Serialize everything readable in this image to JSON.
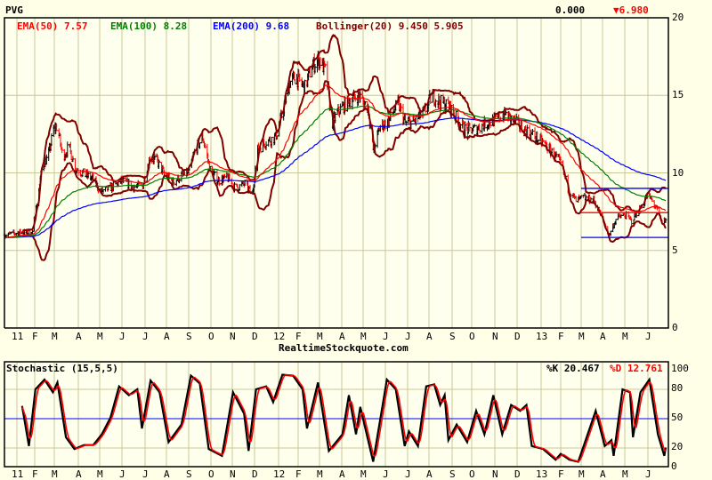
{
  "header": {
    "symbol": "PVG",
    "change": "0.000",
    "last_price": "6.980",
    "down_arrow": "▼"
  },
  "legend": {
    "ema50": "EMA(50) 7.57",
    "ema100": "EMA(100) 8.28",
    "ema200": "EMA(200) 9.68",
    "bollinger": "Bollinger(20) 9.450 5.905"
  },
  "footer": {
    "source": "RealtimeStockquote.com"
  },
  "stochastic_panel": {
    "title": "Stochastic (15,5,5)",
    "k_label": "%K 20.467",
    "d_label": "%D 12.761"
  },
  "colors": {
    "ema50": "#ff0000",
    "ema100": "#008000",
    "ema200": "#0000ff",
    "bollinger": "#800000",
    "up_bar": "#000000",
    "down_bar": "#ff0000",
    "grid": "#c8c896",
    "background": "#ffffe8"
  },
  "chart_data": [
    {
      "type": "line",
      "title": "PVG",
      "ylim": [
        0,
        20
      ],
      "y_ticks": [
        "20",
        "15",
        "10",
        "5",
        "0"
      ],
      "x_tick_labels": [
        "11",
        "F",
        "M",
        "A",
        "M",
        "J",
        "J",
        "A",
        "S",
        "O",
        "N",
        "D",
        "12",
        "F",
        "M",
        "A",
        "M",
        "J",
        "J",
        "A",
        "S",
        "O",
        "N",
        "D",
        "13",
        "F",
        "M",
        "A",
        "M",
        "J"
      ],
      "grid": true,
      "indicators": [
        "EMA(50)",
        "EMA(100)",
        "EMA(200)",
        "Bollinger(20)"
      ],
      "close": [
        [
          "2010-12-15",
          6.0
        ],
        [
          "2011-01-10",
          6.2
        ],
        [
          "2011-01-28",
          6.1
        ],
        [
          "2011-02-04",
          8.0
        ],
        [
          "2011-02-12",
          10.5
        ],
        [
          "2011-02-20",
          11.0
        ],
        [
          "2011-02-28",
          12.8
        ],
        [
          "2011-03-05",
          13.0
        ],
        [
          "2011-03-12",
          11.0
        ],
        [
          "2011-03-20",
          11.7
        ],
        [
          "2011-03-28",
          10.3
        ],
        [
          "2011-04-10",
          9.9
        ],
        [
          "2011-04-22",
          9.6
        ],
        [
          "2011-05-02",
          8.8
        ],
        [
          "2011-05-15",
          9.0
        ],
        [
          "2011-06-01",
          9.5
        ],
        [
          "2011-06-15",
          9.1
        ],
        [
          "2011-06-28",
          9.2
        ],
        [
          "2011-07-08",
          11.0
        ],
        [
          "2011-07-18",
          10.8
        ],
        [
          "2011-07-28",
          10.0
        ],
        [
          "2011-08-10",
          9.4
        ],
        [
          "2011-08-22",
          9.8
        ],
        [
          "2011-09-01",
          10.0
        ],
        [
          "2011-09-10",
          11.5
        ],
        [
          "2011-09-20",
          12.3
        ],
        [
          "2011-09-30",
          10.2
        ],
        [
          "2011-10-12",
          9.5
        ],
        [
          "2011-10-25",
          9.7
        ],
        [
          "2011-11-05",
          9.0
        ],
        [
          "2011-11-18",
          9.3
        ],
        [
          "2011-11-28",
          8.6
        ],
        [
          "2011-12-05",
          11.5
        ],
        [
          "2011-12-15",
          12.0
        ],
        [
          "2011-12-28",
          12.3
        ],
        [
          "2012-01-08",
          14.0
        ],
        [
          "2012-01-18",
          15.8
        ],
        [
          "2012-01-28",
          16.2
        ],
        [
          "2012-02-10",
          15.5
        ],
        [
          "2012-02-20",
          16.9
        ],
        [
          "2012-03-01",
          17.3
        ],
        [
          "2012-03-10",
          16.5
        ],
        [
          "2012-03-18",
          13.2
        ],
        [
          "2012-03-28",
          14.0
        ],
        [
          "2012-04-10",
          14.6
        ],
        [
          "2012-04-25",
          15.0
        ],
        [
          "2012-05-08",
          14.2
        ],
        [
          "2012-05-15",
          11.5
        ],
        [
          "2012-05-25",
          13.0
        ],
        [
          "2012-06-05",
          13.3
        ],
        [
          "2012-06-18",
          14.5
        ],
        [
          "2012-06-28",
          13.2
        ],
        [
          "2012-07-10",
          13.3
        ],
        [
          "2012-07-25",
          13.9
        ],
        [
          "2012-08-05",
          15.0
        ],
        [
          "2012-08-15",
          14.6
        ],
        [
          "2012-08-28",
          14.3
        ],
        [
          "2012-09-08",
          13.5
        ],
        [
          "2012-09-20",
          12.8
        ],
        [
          "2012-10-05",
          12.8
        ],
        [
          "2012-10-20",
          13.2
        ],
        [
          "2012-11-02",
          13.4
        ],
        [
          "2012-11-15",
          13.8
        ],
        [
          "2012-11-28",
          13.3
        ],
        [
          "2012-12-10",
          12.8
        ],
        [
          "2012-12-22",
          12.4
        ],
        [
          "2013-01-08",
          11.8
        ],
        [
          "2013-01-20",
          11.2
        ],
        [
          "2013-02-01",
          10.6
        ],
        [
          "2013-02-12",
          8.9
        ],
        [
          "2013-02-22",
          8.2
        ],
        [
          "2013-03-05",
          8.4
        ],
        [
          "2013-03-20",
          8.2
        ],
        [
          "2013-04-01",
          7.0
        ],
        [
          "2013-04-10",
          6.0
        ],
        [
          "2013-04-20",
          7.1
        ],
        [
          "2013-05-01",
          7.3
        ],
        [
          "2013-05-10",
          6.9
        ],
        [
          "2013-05-20",
          7.6
        ],
        [
          "2013-06-01",
          8.6
        ],
        [
          "2013-06-12",
          7.8
        ],
        [
          "2013-06-20",
          6.8
        ],
        [
          "2013-06-26",
          6.98
        ]
      ],
      "reference_lines": [
        {
          "from": "2013-03-01",
          "value": 9.0,
          "color": "#0000ff"
        },
        {
          "from": "2013-03-01",
          "value": 7.44,
          "color": "#ff0000"
        },
        {
          "from": "2013-03-01",
          "value": 5.84,
          "color": "#0000ff"
        }
      ]
    },
    {
      "type": "line",
      "title": "Stochastic (15,5,5)",
      "ylim": [
        0,
        100
      ],
      "y_ticks": [
        "100",
        "80",
        "50",
        "20",
        "0"
      ],
      "x_tick_labels": [
        "11",
        "F",
        "M",
        "A",
        "M",
        "J",
        "J",
        "A",
        "S",
        "O",
        "N",
        "D",
        "12",
        "F",
        "M",
        "A",
        "M",
        "J",
        "J",
        "A",
        "S",
        "O",
        "N",
        "D",
        "13",
        "F",
        "M",
        "A",
        "M",
        "J"
      ],
      "grid": true,
      "reference_level": 50,
      "series": [
        {
          "name": "%K",
          "color": "#000000",
          "points": [
            [
              "2011-01-10",
              63
            ],
            [
              "2011-01-22",
              22
            ],
            [
              "2011-02-02",
              80
            ],
            [
              "2011-02-15",
              90
            ],
            [
              "2011-02-27",
              77
            ],
            [
              "2011-03-05",
              87
            ],
            [
              "2011-03-16",
              31
            ],
            [
              "2011-03-27",
              19
            ],
            [
              "2011-04-09",
              23
            ],
            [
              "2011-04-22",
              23
            ],
            [
              "2011-05-04",
              34
            ],
            [
              "2011-05-16",
              51
            ],
            [
              "2011-05-28",
              83
            ],
            [
              "2011-06-10",
              74
            ],
            [
              "2011-06-21",
              80
            ],
            [
              "2011-06-27",
              40
            ],
            [
              "2011-07-09",
              89
            ],
            [
              "2011-07-22",
              77
            ],
            [
              "2011-08-04",
              26
            ],
            [
              "2011-08-22",
              44
            ],
            [
              "2011-09-04",
              94
            ],
            [
              "2011-09-16",
              86
            ],
            [
              "2011-09-28",
              19
            ],
            [
              "2011-10-17",
              12
            ],
            [
              "2011-11-02",
              77
            ],
            [
              "2011-11-17",
              55
            ],
            [
              "2011-11-23",
              17
            ],
            [
              "2011-12-03",
              80
            ],
            [
              "2011-12-16",
              83
            ],
            [
              "2011-12-25",
              67
            ],
            [
              "2012-01-07",
              95
            ],
            [
              "2012-01-24",
              94
            ],
            [
              "2012-02-07",
              80
            ],
            [
              "2012-02-13",
              40
            ],
            [
              "2012-02-28",
              87
            ],
            [
              "2012-03-14",
              17
            ],
            [
              "2012-04-02",
              34
            ],
            [
              "2012-04-11",
              74
            ],
            [
              "2012-04-21",
              34
            ],
            [
              "2012-04-27",
              62
            ],
            [
              "2012-05-15",
              6
            ],
            [
              "2012-06-03",
              90
            ],
            [
              "2012-06-15",
              80
            ],
            [
              "2012-06-27",
              22
            ],
            [
              "2012-07-03",
              37
            ],
            [
              "2012-07-16",
              22
            ],
            [
              "2012-07-28",
              83
            ],
            [
              "2012-08-08",
              85
            ],
            [
              "2012-08-16",
              64
            ],
            [
              "2012-08-22",
              74
            ],
            [
              "2012-08-27",
              28
            ],
            [
              "2012-09-08",
              44
            ],
            [
              "2012-09-24",
              26
            ],
            [
              "2012-10-07",
              58
            ],
            [
              "2012-10-18",
              34
            ],
            [
              "2012-10-30",
              74
            ],
            [
              "2012-11-11",
              34
            ],
            [
              "2012-11-23",
              64
            ],
            [
              "2012-12-05",
              58
            ],
            [
              "2012-12-13",
              64
            ],
            [
              "2012-12-20",
              22
            ],
            [
              "2013-01-04",
              19
            ],
            [
              "2013-01-24",
              8
            ],
            [
              "2013-02-01",
              14
            ],
            [
              "2013-02-13",
              8
            ],
            [
              "2013-02-25",
              6
            ],
            [
              "2013-03-09",
              31
            ],
            [
              "2013-03-22",
              58
            ],
            [
              "2013-04-04",
              22
            ],
            [
              "2013-04-13",
              28
            ],
            [
              "2013-04-16",
              12
            ],
            [
              "2013-04-28",
              80
            ],
            [
              "2013-05-08",
              77
            ],
            [
              "2013-05-12",
              31
            ],
            [
              "2013-05-22",
              77
            ],
            [
              "2013-06-03",
              90
            ],
            [
              "2013-06-15",
              34
            ],
            [
              "2013-06-24",
              12
            ],
            [
              "2013-06-26",
              20.467
            ]
          ]
        },
        {
          "name": "%D",
          "color": "#ff0000",
          "last": 12.761
        }
      ]
    }
  ]
}
